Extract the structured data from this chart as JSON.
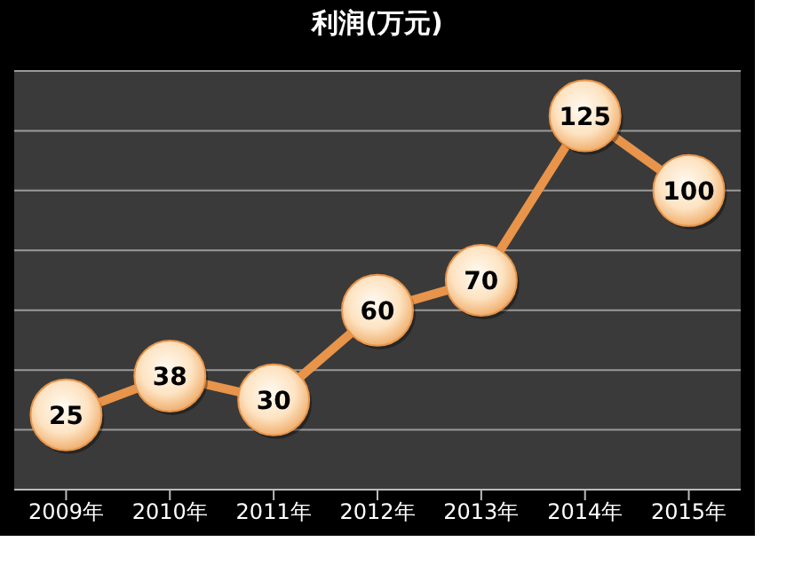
{
  "chart_data": {
    "type": "line",
    "title": "利润(万元)",
    "categories": [
      "2009年",
      "2010年",
      "2011年",
      "2012年",
      "2013年",
      "2014年",
      "2015年"
    ],
    "series": [
      {
        "color": "#e8944a",
        "values": [
          25,
          38,
          30,
          60,
          70,
          125,
          100
        ]
      }
    ],
    "ylim": [
      0,
      140
    ],
    "yticks": [
      {
        "value": 0,
        "label": null
      },
      {
        "value": 20,
        "label": null
      },
      {
        "value": 40,
        "label": null
      },
      {
        "value": 60,
        "label": null
      },
      {
        "value": 80,
        "label": null
      },
      {
        "value": 100,
        "label": null
      },
      {
        "value": 120,
        "label": null
      },
      {
        "value": 140,
        "label": null
      }
    ],
    "tick_labels": "x",
    "grid": "y",
    "marker": "circle",
    "data_labels": true
  }
}
